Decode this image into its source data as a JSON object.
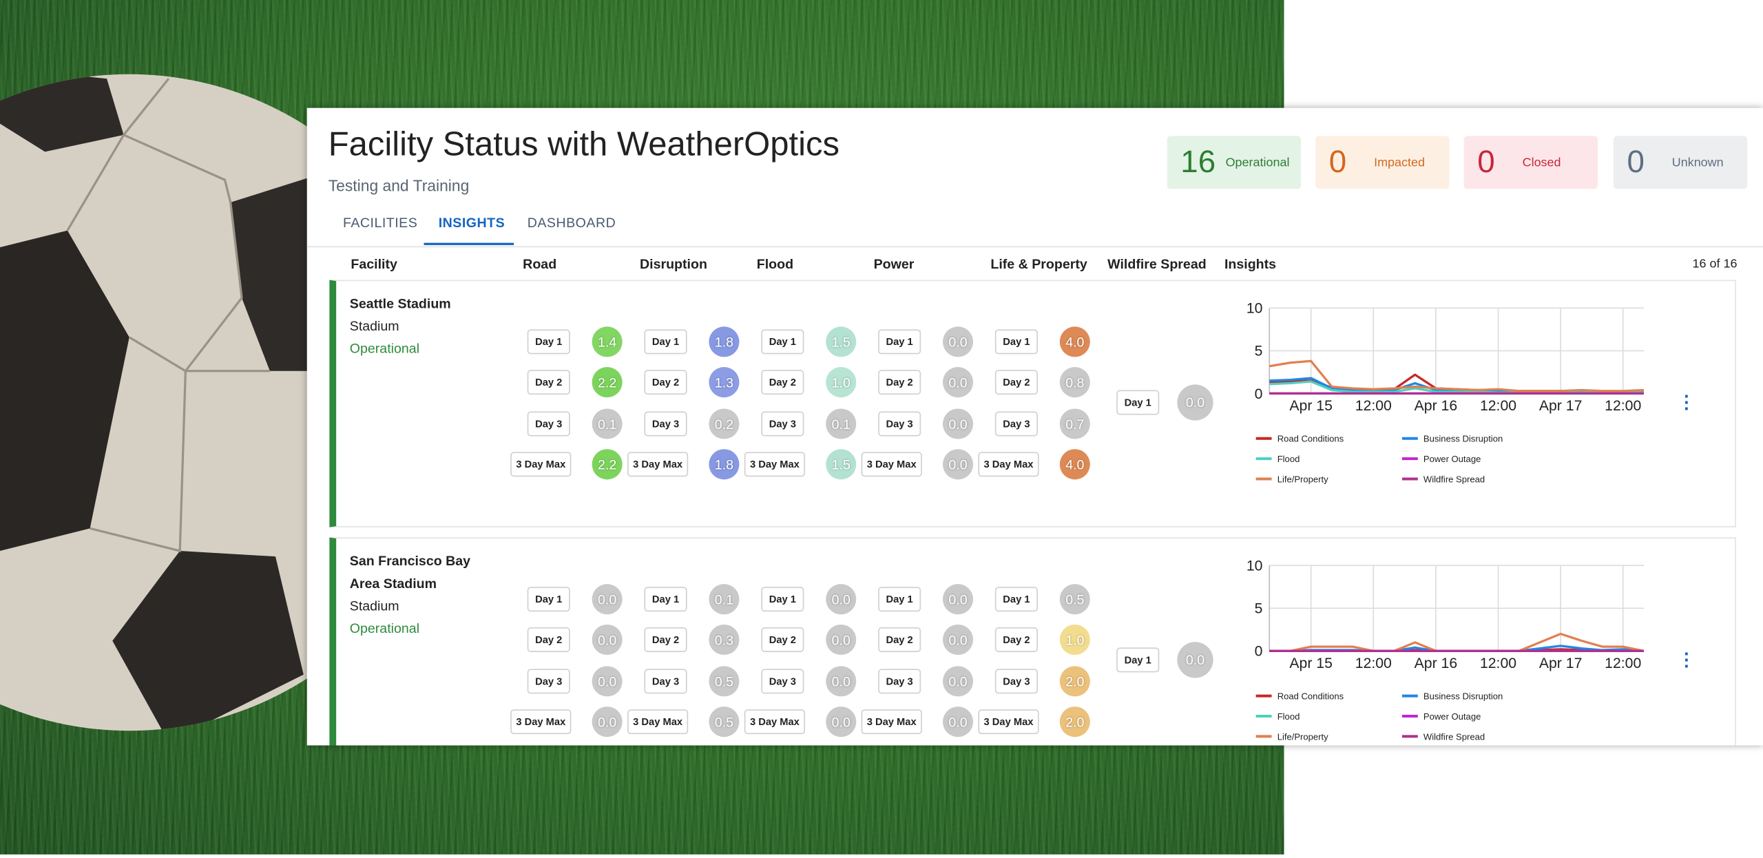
{
  "header": {
    "title": "Facility Status with WeatherOptics",
    "subtitle": "Testing and Training"
  },
  "status_counts": [
    {
      "count": 16,
      "label": "Operational",
      "color": "#2e7d32",
      "background": "#e3f3e6"
    },
    {
      "count": 0,
      "label": "Impacted",
      "color": "#d4671f",
      "background": "#fdf0e2"
    },
    {
      "count": 0,
      "label": "Closed",
      "color": "#c62838",
      "background": "#fde6ea"
    },
    {
      "count": 0,
      "label": "Unknown",
      "color": "#5f6e80",
      "background": "#eceef0"
    }
  ],
  "tabs": [
    "FACILITIES",
    "INSIGHTS",
    "DASHBOARD"
  ],
  "active_tab": 1,
  "columns": [
    "Facility",
    "Road",
    "Disruption",
    "Flood",
    "Power",
    "Life & Property",
    "Wildfire Spread",
    "Insights"
  ],
  "result_count": "16 of 16",
  "score_colors": {
    "none": "#c9c9c9",
    "scales": [
      [
        "#86d767",
        "#6fcf4d"
      ],
      [
        "#8fa0e6",
        "#7086db"
      ],
      [
        "#b8e4d4",
        "#9fdac5"
      ],
      [
        "#c9c9c9",
        "#c9c9c9"
      ],
      [
        "#f2dc8e",
        "#de8a56"
      ]
    ]
  },
  "facilities": [
    {
      "name": "Seattle Stadium",
      "type": "Stadium",
      "status": "Operational",
      "scores": [
        {
          "label": "Day 1",
          "values": [
            "1.4",
            "1.8",
            "1.5",
            "0.0",
            "4.0"
          ]
        },
        {
          "label": "Day 2",
          "values": [
            "2.2",
            "1.3",
            "1.0",
            "0.0",
            "0.8"
          ]
        },
        {
          "label": "Day 3",
          "values": [
            "0.1",
            "0.2",
            "0.1",
            "0.0",
            "0.7"
          ]
        },
        {
          "label": "3 Day Max",
          "values": [
            "2.2",
            "1.8",
            "1.5",
            "0.0",
            "4.0"
          ]
        }
      ],
      "wildfire": {
        "label": "Day 1",
        "value": "0.0"
      },
      "insights": {
        "type": "line",
        "x": [
          -8,
          -4,
          0,
          4,
          8,
          12,
          16,
          20,
          24,
          28,
          32,
          36,
          40,
          44,
          48,
          52,
          56,
          60,
          64
        ],
        "xlim": [
          -8,
          64
        ],
        "xticks": [
          {
            "value": 0,
            "label": "Apr 15"
          },
          {
            "value": 12,
            "label": "12:00"
          },
          {
            "value": 24,
            "label": "Apr 16"
          },
          {
            "value": 36,
            "label": "12:00"
          },
          {
            "value": 48,
            "label": "Apr 17"
          },
          {
            "value": 60,
            "label": "12:00"
          }
        ],
        "ylim": [
          0,
          10
        ],
        "yticks": [
          0,
          5,
          10
        ],
        "grid": true,
        "series": [
          {
            "name": "Road Conditions",
            "color": "#c62828",
            "values": [
              1.3,
              1.4,
              1.5,
              0.7,
              0.5,
              0.4,
              0.5,
              2.2,
              0.6,
              0.5,
              0.4,
              0.4,
              0.3,
              0.3,
              0.3,
              0.3,
              0.2,
              0.2,
              0.3
            ]
          },
          {
            "name": "Business Disruption",
            "color": "#1e88e5",
            "values": [
              1.5,
              1.6,
              1.8,
              0.6,
              0.4,
              0.3,
              0.4,
              1.2,
              0.4,
              0.3,
              0.3,
              0.3,
              0.2,
              0.2,
              0.2,
              0.2,
              0.2,
              0.2,
              0.2
            ]
          },
          {
            "name": "Flood",
            "color": "#4dd0c0",
            "values": [
              1.1,
              1.2,
              1.4,
              0.4,
              0.2,
              0.2,
              0.2,
              0.6,
              0.2,
              0.2,
              0.2,
              0.1,
              0.1,
              0.1,
              0.1,
              0.1,
              0.1,
              0.1,
              0.1
            ]
          },
          {
            "name": "Power Outage",
            "color": "#c026d3",
            "values": [
              0,
              0,
              0,
              0,
              0,
              0,
              0,
              0,
              0,
              0,
              0,
              0,
              0,
              0,
              0,
              0,
              0,
              0,
              0
            ]
          },
          {
            "name": "Life/Property",
            "color": "#e08050",
            "values": [
              3.2,
              3.6,
              3.8,
              0.8,
              0.6,
              0.5,
              0.6,
              0.8,
              0.6,
              0.5,
              0.4,
              0.5,
              0.3,
              0.3,
              0.3,
              0.4,
              0.3,
              0.3,
              0.4
            ]
          },
          {
            "name": "Wildfire Spread",
            "color": "#b03090",
            "values": [
              0,
              0,
              0,
              0,
              0,
              0,
              0,
              0,
              0,
              0,
              0,
              0,
              0,
              0,
              0,
              0,
              0,
              0,
              0
            ]
          }
        ]
      }
    },
    {
      "name": "San Francisco Bay Area Stadium",
      "type": "Stadium",
      "status": "Operational",
      "scores": [
        {
          "label": "Day 1",
          "values": [
            "0.0",
            "0.1",
            "0.0",
            "0.0",
            "0.5"
          ]
        },
        {
          "label": "Day 2",
          "values": [
            "0.0",
            "0.3",
            "0.0",
            "0.0",
            "1.0"
          ]
        },
        {
          "label": "Day 3",
          "values": [
            "0.0",
            "0.5",
            "0.0",
            "0.0",
            "2.0"
          ]
        },
        {
          "label": "3 Day Max",
          "values": [
            "0.0",
            "0.5",
            "0.0",
            "0.0",
            "2.0"
          ]
        }
      ],
      "wildfire": {
        "label": "Day 1",
        "value": "0.0"
      },
      "insights": {
        "type": "line",
        "x": [
          -8,
          -4,
          0,
          4,
          8,
          12,
          16,
          20,
          24,
          28,
          32,
          36,
          40,
          44,
          48,
          52,
          56,
          60,
          64
        ],
        "xlim": [
          -8,
          64
        ],
        "xticks": [
          {
            "value": 0,
            "label": "Apr 15"
          },
          {
            "value": 12,
            "label": "12:00"
          },
          {
            "value": 24,
            "label": "Apr 16"
          },
          {
            "value": 36,
            "label": "12:00"
          },
          {
            "value": 48,
            "label": "Apr 17"
          },
          {
            "value": 60,
            "label": "12:00"
          }
        ],
        "ylim": [
          0,
          10
        ],
        "yticks": [
          0,
          5,
          10
        ],
        "grid": true,
        "series": [
          {
            "name": "Road Conditions",
            "color": "#c62828",
            "values": [
              0,
              0,
              0,
              0,
              0,
              0,
              0,
              0.1,
              0,
              0,
              0,
              0,
              0,
              0.1,
              0.2,
              0.1,
              0,
              0,
              0
            ]
          },
          {
            "name": "Business Disruption",
            "color": "#1e88e5",
            "values": [
              0,
              0,
              0.1,
              0.1,
              0.1,
              0,
              0,
              0.4,
              0,
              0,
              0,
              0,
              0,
              0.3,
              0.6,
              0.3,
              0.1,
              0.2,
              0
            ]
          },
          {
            "name": "Flood",
            "color": "#4dd0c0",
            "values": [
              0,
              0,
              0,
              0,
              0,
              0,
              0,
              0,
              0,
              0,
              0,
              0,
              0,
              0,
              0,
              0,
              0,
              0,
              0
            ]
          },
          {
            "name": "Power Outage",
            "color": "#c026d3",
            "values": [
              0,
              0,
              0,
              0,
              0,
              0,
              0,
              0,
              0,
              0,
              0,
              0,
              0,
              0,
              0,
              0,
              0,
              0,
              0
            ]
          },
          {
            "name": "Life/Property",
            "color": "#e08050",
            "values": [
              0,
              0,
              0.5,
              0.5,
              0.5,
              0,
              0,
              1.0,
              0,
              0,
              0,
              0,
              0,
              1.0,
              2.0,
              1.2,
              0.5,
              0.5,
              0
            ]
          },
          {
            "name": "Wildfire Spread",
            "color": "#b03090",
            "values": [
              0,
              0,
              0,
              0,
              0,
              0,
              0,
              0,
              0,
              0,
              0,
              0,
              0,
              0,
              0,
              0,
              0,
              0,
              0
            ]
          }
        ]
      }
    }
  ]
}
